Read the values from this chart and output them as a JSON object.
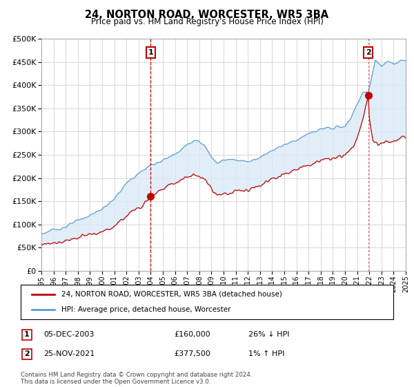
{
  "title": "24, NORTON ROAD, WORCESTER, WR5 3BA",
  "subtitle": "Price paid vs. HM Land Registry's House Price Index (HPI)",
  "ylim": [
    0,
    500000
  ],
  "yticks": [
    0,
    50000,
    100000,
    150000,
    200000,
    250000,
    300000,
    350000,
    400000,
    450000,
    500000
  ],
  "hpi_color": "#5b9bd5",
  "hpi_fill_color": "#daeaf7",
  "price_color": "#c00000",
  "annotation_color": "#c00000",
  "background_color": "#ffffff",
  "grid_color": "#d0d0d0",
  "legend_label_price": "24, NORTON ROAD, WORCESTER, WR5 3BA (detached house)",
  "legend_label_hpi": "HPI: Average price, detached house, Worcester",
  "transaction1_label": "1",
  "transaction1_date": "05-DEC-2003",
  "transaction1_price": "£160,000",
  "transaction1_change": "26% ↓ HPI",
  "transaction1_year": 2004.0,
  "transaction1_value": 160000,
  "transaction2_label": "2",
  "transaction2_date": "25-NOV-2021",
  "transaction2_price": "£377,500",
  "transaction2_change": "1% ↑ HPI",
  "transaction2_year": 2021.92,
  "transaction2_value": 377500,
  "footer": "Contains HM Land Registry data © Crown copyright and database right 2024.\nThis data is licensed under the Open Government Licence v3.0.",
  "xmin": 1995,
  "xmax": 2025
}
